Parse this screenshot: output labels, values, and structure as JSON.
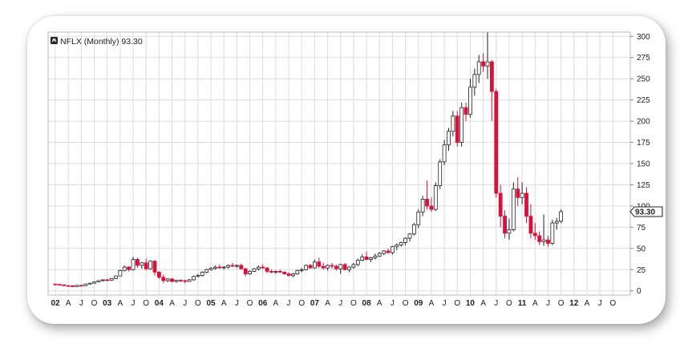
{
  "chart_data": {
    "type": "candlestick",
    "title": "NFLX (Monthly) 93.30",
    "symbol_icon": "sc-logo-icon",
    "last_price_label": "93.30",
    "ylim": [
      -5,
      305
    ],
    "y_ticks": [
      "0",
      "25",
      "50",
      "75",
      "100",
      "125",
      "150",
      "175",
      "200",
      "225",
      "250",
      "275",
      "300"
    ],
    "x_ticks": [
      "02",
      "A",
      "J",
      "O",
      "03",
      "A",
      "J",
      "O",
      "04",
      "A",
      "J",
      "O",
      "05",
      "A",
      "J",
      "O",
      "06",
      "A",
      "J",
      "O",
      "07",
      "A",
      "J",
      "O",
      "08",
      "A",
      "J",
      "O",
      "09",
      "A",
      "J",
      "O",
      "10",
      "A",
      "J",
      "O",
      "11",
      "A",
      "J",
      "O",
      "12",
      "A",
      "J",
      "O"
    ],
    "year_ticks": [
      "02",
      "03",
      "04",
      "05",
      "06",
      "07",
      "08",
      "09",
      "10",
      "11",
      "12"
    ],
    "grid": true,
    "colors": {
      "up": "#ffffff",
      "down": "#d8103c",
      "outline": "#222222",
      "grid": "#dcdcdc"
    },
    "series": [
      {
        "values": [
          [
            8,
            8.5,
            7,
            7.5
          ],
          [
            7.5,
            8.2,
            6.5,
            7
          ],
          [
            7,
            7.5,
            5.8,
            6.2
          ],
          [
            6.2,
            6.8,
            5.5,
            6
          ],
          [
            6,
            6.5,
            4.5,
            5
          ],
          [
            5,
            6.8,
            4.8,
            6.5
          ],
          [
            6.5,
            7.2,
            5.6,
            6
          ],
          [
            6,
            8.5,
            5.8,
            8
          ],
          [
            8,
            9.5,
            7.5,
            9
          ],
          [
            9,
            11,
            8.5,
            10.5
          ],
          [
            10.5,
            12.5,
            10,
            12
          ],
          [
            12,
            13.5,
            11,
            13
          ],
          [
            13,
            14,
            11.5,
            12.5
          ],
          [
            12.5,
            15,
            12,
            14.5
          ],
          [
            14.5,
            18,
            14,
            17.5
          ],
          [
            17.5,
            25,
            17,
            24
          ],
          [
            24,
            30,
            23,
            28
          ],
          [
            28,
            29,
            23,
            25
          ],
          [
            25,
            40,
            24,
            37
          ],
          [
            37,
            39,
            27,
            30
          ],
          [
            30,
            34,
            26,
            33
          ],
          [
            33,
            38,
            24,
            26
          ],
          [
            26,
            36,
            25,
            35
          ],
          [
            35,
            36,
            18,
            22
          ],
          [
            22,
            23,
            14,
            16
          ],
          [
            16,
            19,
            9,
            12
          ],
          [
            12,
            15,
            10,
            14
          ],
          [
            14,
            15,
            10,
            11
          ],
          [
            11,
            13,
            9.5,
            12.5
          ],
          [
            12.5,
            13.5,
            10.5,
            12
          ],
          [
            12,
            13,
            9,
            11
          ],
          [
            11,
            14,
            10.5,
            13
          ],
          [
            13,
            18,
            12,
            17
          ],
          [
            17,
            20,
            16,
            18
          ],
          [
            18,
            23,
            17,
            22
          ],
          [
            22,
            26,
            21,
            25
          ],
          [
            25,
            28,
            24,
            26.5
          ],
          [
            26.5,
            30,
            25,
            28
          ],
          [
            28,
            31,
            26,
            27.5
          ],
          [
            27.5,
            29,
            25,
            28
          ],
          [
            28,
            31,
            26,
            30
          ],
          [
            30,
            33,
            28,
            29
          ],
          [
            29,
            31,
            27,
            30
          ],
          [
            30,
            32,
            25,
            26
          ],
          [
            26,
            27,
            17,
            20
          ],
          [
            20,
            24,
            19,
            23
          ],
          [
            23,
            27,
            22,
            26
          ],
          [
            26,
            30,
            24,
            28
          ],
          [
            28,
            31,
            26,
            27
          ],
          [
            27,
            28,
            21,
            23
          ],
          [
            23,
            25,
            21,
            22
          ],
          [
            22,
            24,
            20,
            23
          ],
          [
            23,
            25,
            21,
            22
          ],
          [
            22,
            23,
            19,
            20
          ],
          [
            20,
            22,
            17,
            18
          ],
          [
            18,
            21,
            16,
            20
          ],
          [
            20,
            25,
            19,
            24
          ],
          [
            24,
            27,
            22,
            25
          ],
          [
            25,
            31,
            24,
            30
          ],
          [
            30,
            32,
            26,
            27
          ],
          [
            27,
            37,
            26,
            34
          ],
          [
            34,
            39,
            27,
            29
          ],
          [
            29,
            33,
            25,
            27
          ],
          [
            27,
            31,
            24,
            30
          ],
          [
            30,
            33,
            26,
            29
          ],
          [
            29,
            31,
            24,
            26
          ],
          [
            26,
            32,
            20,
            31
          ],
          [
            31,
            33,
            24,
            25
          ],
          [
            25,
            29,
            22,
            28
          ],
          [
            28,
            33,
            26,
            31
          ],
          [
            31,
            38,
            29,
            36
          ],
          [
            36,
            43,
            35,
            40
          ],
          [
            40,
            46,
            36,
            37
          ],
          [
            37,
            40,
            34,
            39
          ],
          [
            39,
            44,
            37,
            41
          ],
          [
            41,
            46,
            40,
            44
          ],
          [
            44,
            48,
            42,
            47
          ],
          [
            47,
            50,
            44,
            45
          ],
          [
            45,
            53,
            43,
            52
          ],
          [
            52,
            56,
            48,
            54
          ],
          [
            54,
            58,
            52,
            57
          ],
          [
            57,
            63,
            54,
            62
          ],
          [
            62,
            68,
            58,
            67
          ],
          [
            67,
            80,
            65,
            78
          ],
          [
            78,
            96,
            74,
            93
          ],
          [
            93,
            112,
            88,
            108
          ],
          [
            108,
            130,
            96,
            100
          ],
          [
            100,
            110,
            93,
            96
          ],
          [
            96,
            128,
            94,
            124
          ],
          [
            124,
            155,
            120,
            152
          ],
          [
            152,
            178,
            148,
            172
          ],
          [
            172,
            192,
            165,
            188
          ],
          [
            188,
            212,
            182,
            206
          ],
          [
            206,
            212,
            170,
            175
          ],
          [
            175,
            222,
            170,
            216
          ],
          [
            216,
            222,
            200,
            208
          ],
          [
            208,
            250,
            204,
            240
          ],
          [
            240,
            262,
            230,
            255
          ],
          [
            255,
            278,
            245,
            270
          ],
          [
            270,
            280,
            258,
            265
          ],
          [
            265,
            305,
            250,
            270
          ],
          [
            270,
            272,
            200,
            235
          ],
          [
            235,
            238,
            110,
            115
          ],
          [
            115,
            125,
            75,
            88
          ],
          [
            88,
            95,
            62,
            68
          ],
          [
            68,
            85,
            60,
            72
          ],
          [
            72,
            128,
            70,
            120
          ],
          [
            120,
            134,
            100,
            110
          ],
          [
            110,
            128,
            102,
            115
          ],
          [
            115,
            122,
            80,
            88
          ],
          [
            88,
            102,
            62,
            68
          ],
          [
            68,
            80,
            60,
            65
          ],
          [
            65,
            70,
            54,
            58
          ],
          [
            58,
            90,
            53,
            60
          ],
          [
            60,
            65,
            52,
            56
          ],
          [
            56,
            84,
            54,
            80
          ],
          [
            80,
            86,
            72,
            82
          ],
          [
            82,
            96,
            80,
            93.3
          ]
        ]
      }
    ]
  }
}
